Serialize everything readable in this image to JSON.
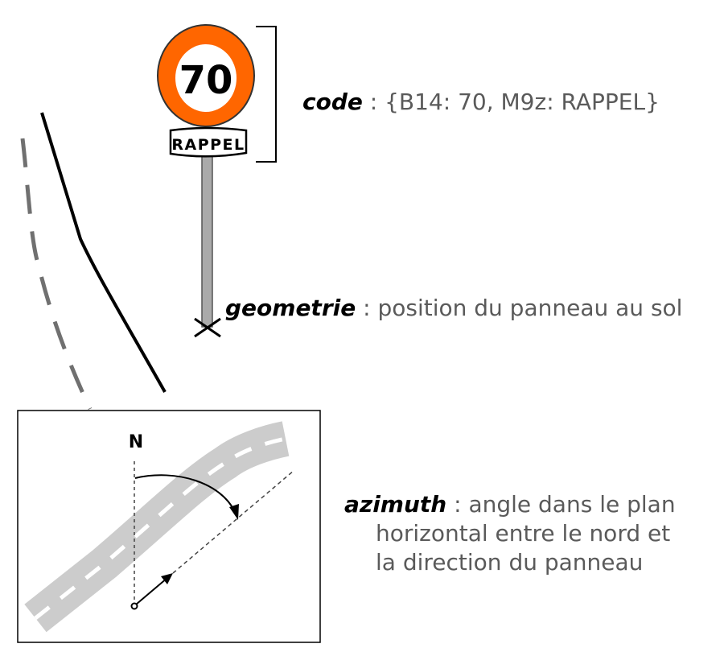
{
  "sign": {
    "speed_value": "70",
    "panel_text": "RAPPEL",
    "ring_color": "#ff6600"
  },
  "inset": {
    "north_label": "N"
  },
  "labels": {
    "code": {
      "term": "code",
      "text": " : {B14: 70, M9z: RAPPEL}"
    },
    "geometrie": {
      "term": "geometrie",
      "text": " : position du panneau au sol"
    },
    "azimuth": {
      "term": "azimuth",
      "line1": " : angle dans le plan",
      "line2": "horizontal entre le nord et",
      "line3": "la direction du panneau"
    }
  },
  "colors": {
    "road": "#cccccc",
    "text_gray": "#5a5a5a",
    "pole": "#aaaaaa"
  }
}
